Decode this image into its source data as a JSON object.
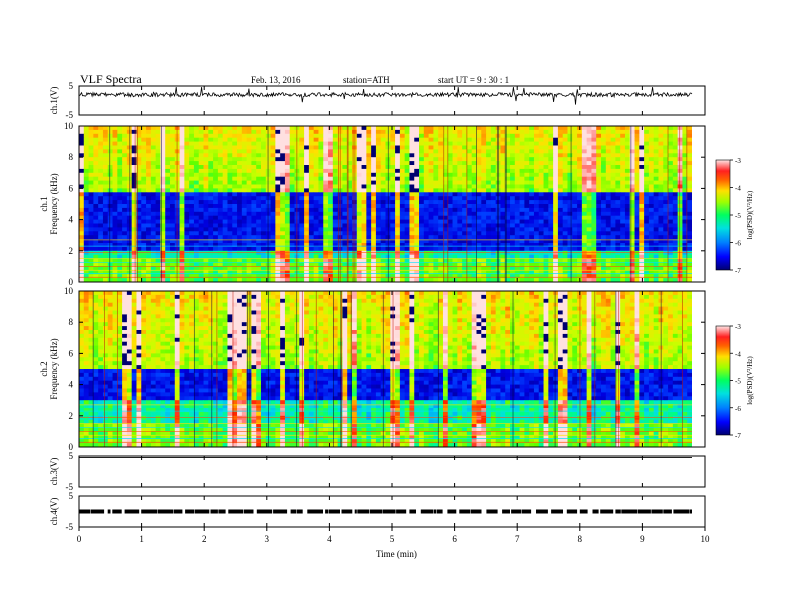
{
  "header": {
    "title": "VLF  Spectra",
    "date": "Feb. 13, 2016",
    "station": "station=ATH",
    "start_ut": "start  UT  =   9  : 30 : 1"
  },
  "chart_data": {
    "type": "heatmap",
    "title": "VLF  Spectra",
    "x_axis": {
      "label": "Time  (min)",
      "range": [
        0,
        10
      ],
      "ticks": [
        "0",
        "1",
        "2",
        "3",
        "4",
        "5",
        "6",
        "7",
        "8",
        "9",
        "10"
      ]
    },
    "panels": [
      {
        "id": "ch1-waveform",
        "type": "line",
        "ylabel": "ch.1(V)",
        "ylim": [
          -5,
          5
        ],
        "yticks": [
          "5",
          "-5"
        ],
        "approx_level_volts": 2.0,
        "description_level": "noisy trace near +2 V with spikes"
      },
      {
        "id": "ch1-spectrogram",
        "type": "heatmap",
        "ylabel": "ch.1\nFrequency  (kHz)",
        "ylabel_lines": [
          "ch.1",
          "Frequency  (kHz)"
        ],
        "ylim": [
          0,
          10
        ],
        "yticks": [
          "0",
          "2",
          "4",
          "6",
          "8",
          "10"
        ],
        "colorbar": {
          "label": "log(PSD)(V²/Hz)",
          "range": [
            -7,
            -3
          ],
          "ticks": [
            "-3",
            "-4",
            "-5",
            "-6",
            "-7"
          ]
        },
        "dark_band_khz": [
          2.1,
          5.8
        ]
      },
      {
        "id": "ch2-spectrogram",
        "type": "heatmap",
        "ylabel": "ch.2\nFrequency  (kHz)",
        "ylabel_lines": [
          "ch.2",
          "Frequency  (kHz)"
        ],
        "ylim": [
          0,
          10
        ],
        "yticks": [
          "0",
          "2",
          "4",
          "6",
          "8",
          "10"
        ],
        "colorbar": {
          "label": "log(PSD)(V²/Hz)",
          "range": [
            -7,
            -3
          ],
          "ticks": [
            "-3",
            "-4",
            "-5",
            "-6",
            "-7"
          ]
        },
        "dark_band_khz": [
          3.0,
          5.0
        ]
      },
      {
        "id": "ch3-waveform",
        "type": "line",
        "ylabel": "ch.3(V)",
        "ylim": [
          -5,
          5
        ],
        "yticks": [
          "5",
          "-5"
        ],
        "approx_level_volts": 4.5
      },
      {
        "id": "ch4-waveform",
        "type": "line",
        "ylabel": "ch.4(V)",
        "ylim": [
          -5,
          5
        ],
        "yticks": [
          "5",
          "-5"
        ],
        "approx_level_volts": 0.0
      }
    ]
  },
  "colors": {
    "colormap": [
      "#000070",
      "#0000e0",
      "#0040ff",
      "#00a0ff",
      "#00e0e0",
      "#00ff80",
      "#60ff00",
      "#c8ff00",
      "#ffe000",
      "#ff8000",
      "#ff2000",
      "#ff8080",
      "#ffe0e0"
    ]
  }
}
